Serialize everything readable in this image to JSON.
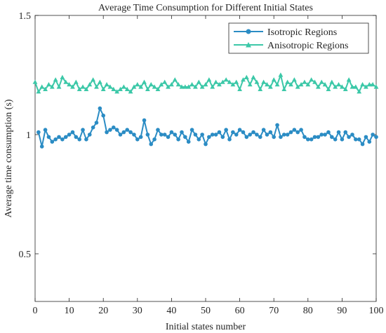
{
  "chart_data": {
    "type": "line",
    "title": "Average Time Consumption for Different Initial States",
    "xlabel": "Initial states number",
    "ylabel": "Average time consumption (s)",
    "xlim": [
      0,
      100
    ],
    "ylim": [
      0.3,
      1.5
    ],
    "xticks": [
      0,
      10,
      20,
      30,
      40,
      50,
      60,
      70,
      80,
      90,
      100
    ],
    "yticks": [
      0.5,
      1,
      1.5
    ],
    "ytick_labels": [
      "0.5",
      "1",
      "1.5"
    ],
    "grid": false,
    "legend_position": "top-right",
    "series": [
      {
        "name": "Isotropic Regions",
        "color": "#2b8cc4",
        "marker": "circle",
        "x": [
          1,
          2,
          3,
          4,
          5,
          6,
          7,
          8,
          9,
          10,
          11,
          12,
          13,
          14,
          15,
          16,
          17,
          18,
          19,
          20,
          21,
          22,
          23,
          24,
          25,
          26,
          27,
          28,
          29,
          30,
          31,
          32,
          33,
          34,
          35,
          36,
          37,
          38,
          39,
          40,
          41,
          42,
          43,
          44,
          45,
          46,
          47,
          48,
          49,
          50,
          51,
          52,
          53,
          54,
          55,
          56,
          57,
          58,
          59,
          60,
          61,
          62,
          63,
          64,
          65,
          66,
          67,
          68,
          69,
          70,
          71,
          72,
          73,
          74,
          75,
          76,
          77,
          78,
          79,
          80,
          81,
          82,
          83,
          84,
          85,
          86,
          87,
          88,
          89,
          90,
          91,
          92,
          93,
          94,
          95,
          96,
          97,
          98,
          99,
          100
        ],
        "values": [
          1.01,
          0.95,
          1.02,
          0.99,
          0.97,
          0.98,
          0.99,
          0.98,
          0.99,
          1.0,
          1.01,
          0.99,
          0.98,
          1.02,
          0.98,
          1.0,
          1.03,
          1.05,
          1.11,
          1.08,
          1.01,
          1.02,
          1.03,
          1.02,
          1.0,
          1.01,
          1.02,
          1.01,
          1.0,
          0.98,
          0.99,
          1.06,
          1.0,
          0.96,
          0.98,
          1.02,
          1.0,
          1.0,
          0.99,
          1.01,
          1.0,
          0.98,
          1.01,
          0.99,
          0.97,
          1.02,
          1.0,
          0.98,
          1.0,
          0.96,
          0.99,
          1.0,
          1.0,
          1.01,
          0.99,
          1.02,
          0.98,
          1.01,
          1.0,
          1.02,
          1.01,
          0.99,
          1.0,
          1.01,
          1.0,
          0.99,
          1.02,
          1.0,
          1.01,
          0.99,
          1.04,
          0.99,
          1.0,
          1.0,
          1.01,
          1.02,
          1.01,
          1.02,
          0.99,
          0.98,
          0.98,
          0.99,
          0.99,
          1.0,
          1.0,
          1.01,
          0.99,
          0.98,
          1.01,
          0.98,
          1.01,
          0.99,
          1.0,
          0.98,
          0.98,
          0.96,
          0.99,
          0.97,
          1.0,
          0.99
        ]
      },
      {
        "name": "Anisotropic Regions",
        "color": "#3cc8a8",
        "marker": "triangle",
        "x": [
          0,
          1,
          2,
          3,
          4,
          5,
          6,
          7,
          8,
          9,
          10,
          11,
          12,
          13,
          14,
          15,
          16,
          17,
          18,
          19,
          20,
          21,
          22,
          23,
          24,
          25,
          26,
          27,
          28,
          29,
          30,
          31,
          32,
          33,
          34,
          35,
          36,
          37,
          38,
          39,
          40,
          41,
          42,
          43,
          44,
          45,
          46,
          47,
          48,
          49,
          50,
          51,
          52,
          53,
          54,
          55,
          56,
          57,
          58,
          59,
          60,
          61,
          62,
          63,
          64,
          65,
          66,
          67,
          68,
          69,
          70,
          71,
          72,
          73,
          74,
          75,
          76,
          77,
          78,
          79,
          80,
          81,
          82,
          83,
          84,
          85,
          86,
          87,
          88,
          89,
          90,
          91,
          92,
          93,
          94,
          95,
          96,
          97,
          98,
          99,
          100
        ],
        "values": [
          1.22,
          1.18,
          1.2,
          1.19,
          1.21,
          1.2,
          1.23,
          1.2,
          1.24,
          1.22,
          1.21,
          1.2,
          1.22,
          1.19,
          1.2,
          1.19,
          1.21,
          1.23,
          1.2,
          1.22,
          1.19,
          1.21,
          1.2,
          1.19,
          1.18,
          1.19,
          1.2,
          1.19,
          1.18,
          1.2,
          1.21,
          1.2,
          1.22,
          1.19,
          1.21,
          1.2,
          1.19,
          1.21,
          1.22,
          1.2,
          1.21,
          1.23,
          1.21,
          1.2,
          1.2,
          1.2,
          1.21,
          1.2,
          1.22,
          1.2,
          1.21,
          1.23,
          1.2,
          1.22,
          1.21,
          1.22,
          1.23,
          1.22,
          1.21,
          1.22,
          1.19,
          1.23,
          1.24,
          1.21,
          1.24,
          1.22,
          1.19,
          1.22,
          1.21,
          1.2,
          1.23,
          1.21,
          1.25,
          1.19,
          1.22,
          1.21,
          1.23,
          1.2,
          1.21,
          1.22,
          1.21,
          1.23,
          1.22,
          1.2,
          1.22,
          1.21,
          1.19,
          1.22,
          1.2,
          1.21,
          1.2,
          1.19,
          1.23,
          1.2,
          1.2,
          1.18,
          1.21,
          1.2,
          1.21,
          1.21,
          1.2
        ]
      }
    ]
  }
}
